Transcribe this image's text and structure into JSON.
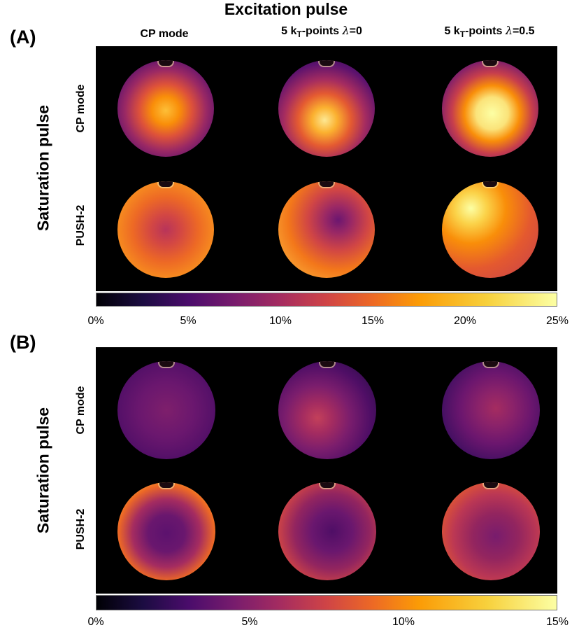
{
  "figure": {
    "supertitle": "Excitation pulse",
    "row_title": "Saturation pulse",
    "col_headers": {
      "cp_mode": "CP mode",
      "kt0_prefix": "5 k",
      "kt0_sub": "T",
      "kt0_rest": "-points ",
      "kt0_lambda": "λ",
      "kt0_value": "=0",
      "kt05_prefix": "5 k",
      "kt05_sub": "T",
      "kt05_rest": "-points ",
      "kt05_lambda": "λ",
      "kt05_value": "=0.5"
    },
    "row_labels": {
      "cp_mode": "CP mode",
      "push2": "PUSH-2"
    },
    "colormap": "inferno"
  },
  "panel_a": {
    "label": "(A)",
    "colorbar_ticks": [
      "0%",
      "5%",
      "10%",
      "15%",
      "20%",
      "25%"
    ],
    "colorbar_range": [
      0,
      25
    ]
  },
  "panel_b": {
    "label": "(B)",
    "colorbar_ticks": [
      "0%",
      "5%",
      "10%",
      "15%"
    ],
    "colorbar_range": [
      0,
      15
    ]
  }
}
